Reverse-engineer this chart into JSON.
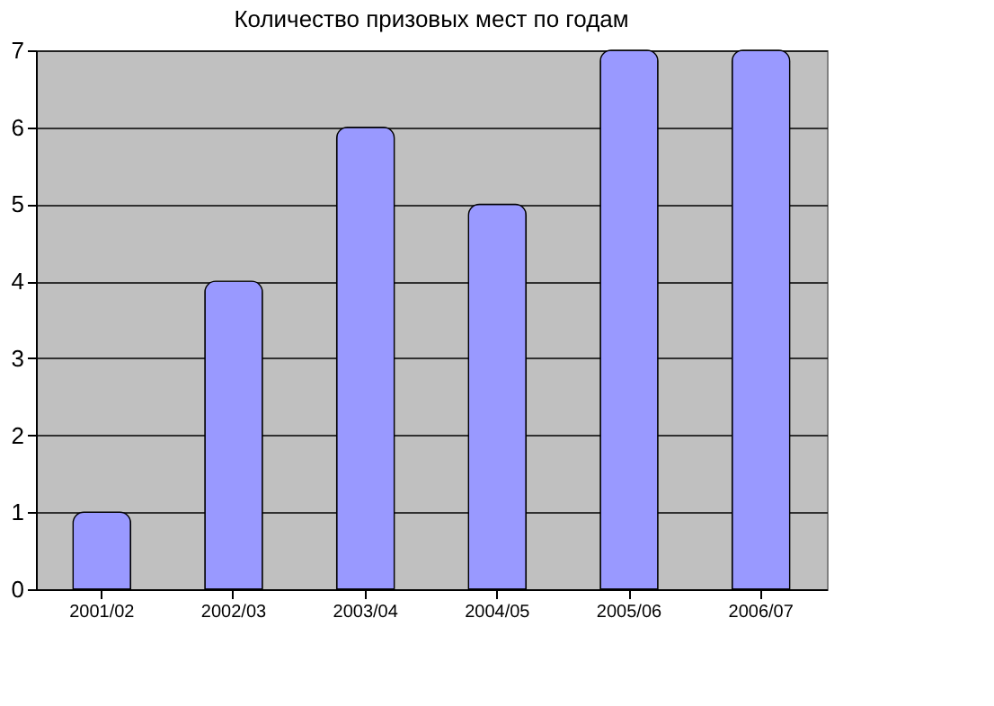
{
  "chart_data": {
    "type": "bar",
    "title": "Количество призовых мест по годам",
    "categories": [
      "2001/02",
      "2002/03",
      "2003/04",
      "2004/05",
      "2005/06",
      "2006/07"
    ],
    "values": [
      1,
      4,
      6,
      5,
      7,
      7
    ],
    "color": "#9999ff",
    "ylim": [
      0,
      7
    ],
    "yticks": [
      0,
      1,
      2,
      3,
      4,
      5,
      6,
      7
    ],
    "grid": "y"
  }
}
